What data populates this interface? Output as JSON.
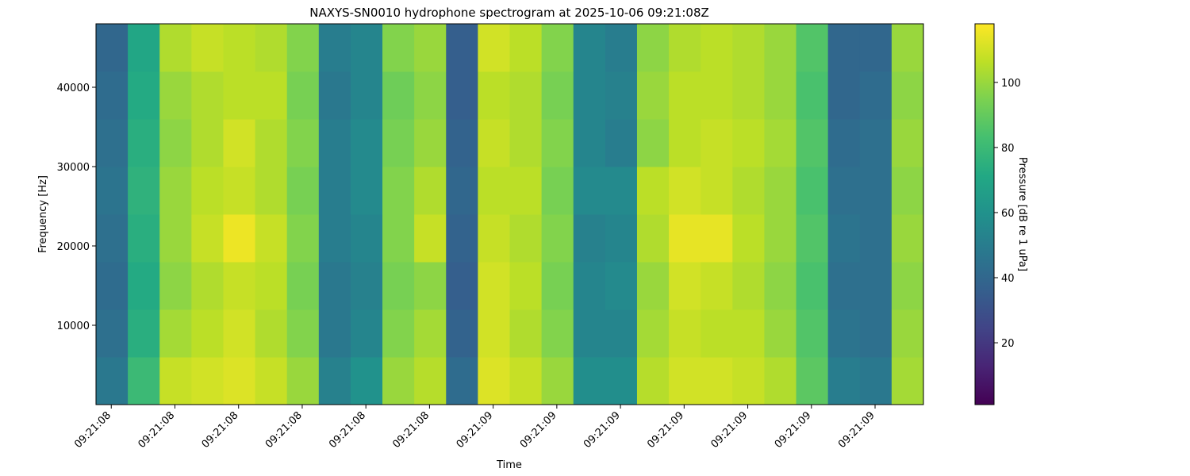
{
  "chart_data": {
    "type": "heatmap",
    "title": "NAXYS-SN0010 hydrophone spectrogram at 2025-10-06 09:21:08Z",
    "xlabel": "Time",
    "ylabel": "Frequency [Hz]",
    "colorbar_label": "Pressure [dB re 1 uPa]",
    "colormap": "viridis",
    "xlim": [
      0.426,
      1.726
    ],
    "xticks": [
      {
        "value": 0.45,
        "label": "09:21:08"
      },
      {
        "value": 0.55,
        "label": "09:21:08"
      },
      {
        "value": 0.65,
        "label": "09:21:08"
      },
      {
        "value": 0.75,
        "label": "09:21:08"
      },
      {
        "value": 0.85,
        "label": "09:21:08"
      },
      {
        "value": 0.95,
        "label": "09:21:08"
      },
      {
        "value": 1.05,
        "label": "09:21:09"
      },
      {
        "value": 1.15,
        "label": "09:21:09"
      },
      {
        "value": 1.25,
        "label": "09:21:09"
      },
      {
        "value": 1.35,
        "label": "09:21:09"
      },
      {
        "value": 1.45,
        "label": "09:21:09"
      },
      {
        "value": 1.55,
        "label": "09:21:09"
      },
      {
        "value": 1.65,
        "label": "09:21:09"
      }
    ],
    "ylim": [
      0,
      48000
    ],
    "yticks": [
      10000,
      20000,
      30000,
      40000
    ],
    "clim": [
      1,
      118
    ],
    "cticks": [
      20,
      40,
      60,
      80,
      100
    ],
    "x": [
      0.451,
      0.501,
      0.551,
      0.601,
      0.651,
      0.701,
      0.751,
      0.801,
      0.851,
      0.901,
      0.951,
      1.001,
      1.051,
      1.101,
      1.151,
      1.201,
      1.251,
      1.301,
      1.351,
      1.401,
      1.451,
      1.501,
      1.551,
      1.601,
      1.651,
      1.701
    ],
    "y": [
      3000,
      9000,
      15000,
      21000,
      27000,
      33000,
      39000,
      45000
    ],
    "z": [
      [
        48,
        80,
        108,
        110,
        112,
        108,
        100,
        52,
        60,
        100,
        105,
        42,
        112,
        108,
        100,
        58,
        58,
        105,
        110,
        110,
        108,
        104,
        88,
        50,
        48,
        102
      ],
      [
        44,
        74,
        102,
        106,
        110,
        104,
        96,
        48,
        54,
        96,
        102,
        38,
        110,
        104,
        96,
        54,
        54,
        102,
        108,
        106,
        106,
        100,
        86,
        46,
        44,
        100
      ],
      [
        42,
        72,
        98,
        104,
        108,
        106,
        94,
        48,
        52,
        94,
        98,
        36,
        110,
        106,
        94,
        54,
        56,
        100,
        110,
        108,
        104,
        98,
        84,
        44,
        44,
        98
      ],
      [
        44,
        74,
        100,
        108,
        115,
        108,
        96,
        50,
        54,
        96,
        108,
        38,
        108,
        104,
        96,
        52,
        54,
        104,
        114,
        114,
        106,
        100,
        86,
        46,
        44,
        100
      ],
      [
        46,
        76,
        100,
        106,
        108,
        104,
        94,
        50,
        56,
        96,
        104,
        40,
        106,
        106,
        94,
        56,
        56,
        106,
        110,
        108,
        104,
        100,
        84,
        44,
        44,
        98
      ],
      [
        44,
        74,
        98,
        104,
        110,
        104,
        96,
        50,
        56,
        94,
        100,
        38,
        108,
        104,
        96,
        54,
        50,
        98,
        106,
        108,
        106,
        102,
        86,
        42,
        44,
        100
      ],
      [
        42,
        72,
        100,
        104,
        106,
        106,
        94,
        48,
        54,
        92,
        98,
        36,
        106,
        104,
        94,
        54,
        52,
        100,
        106,
        106,
        104,
        100,
        84,
        40,
        42,
        98
      ],
      [
        40,
        70,
        104,
        108,
        106,
        104,
        96,
        50,
        54,
        96,
        100,
        36,
        110,
        106,
        96,
        54,
        50,
        98,
        104,
        106,
        104,
        100,
        86,
        40,
        40,
        100
      ]
    ]
  }
}
